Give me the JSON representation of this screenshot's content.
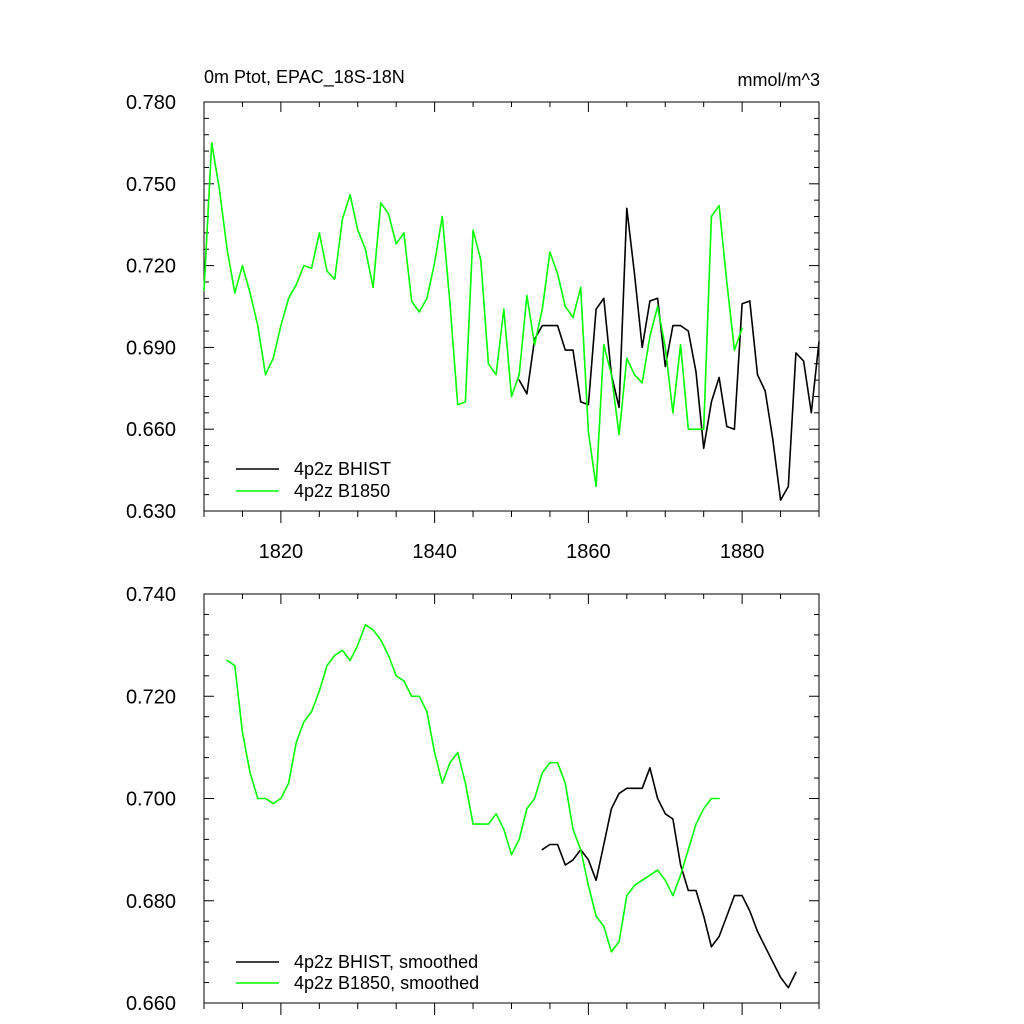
{
  "chart_data": [
    {
      "type": "line",
      "title": "0m Ptot, EPAC_18S-18N",
      "units": "mmol/m^3",
      "xlim": [
        1810,
        1890
      ],
      "ylim": [
        0.63,
        0.78
      ],
      "x_ticks": [
        1820,
        1840,
        1860,
        1880
      ],
      "x_tick_labels": [
        "1820",
        "1840",
        "1860",
        "1880"
      ],
      "y_ticks": [
        0.63,
        0.66,
        0.69,
        0.72,
        0.75,
        0.78
      ],
      "y_tick_labels": [
        "0.630",
        "0.660",
        "0.690",
        "0.720",
        "0.750",
        "0.780"
      ],
      "grid": false,
      "legend_position": "bottom-left",
      "series": [
        {
          "name": "4p2z BHIST",
          "color": "#000000",
          "x": [
            1851,
            1852,
            1853,
            1854,
            1855,
            1856,
            1857,
            1858,
            1859,
            1860,
            1861,
            1862,
            1863,
            1864,
            1865,
            1866,
            1867,
            1868,
            1869,
            1870,
            1871,
            1872,
            1873,
            1874,
            1875,
            1876,
            1877,
            1878,
            1879,
            1880,
            1881,
            1882,
            1883,
            1884,
            1885,
            1886,
            1887,
            1888,
            1889,
            1890
          ],
          "y": [
            0.678,
            0.673,
            0.693,
            0.698,
            0.698,
            0.698,
            0.689,
            0.689,
            0.67,
            0.669,
            0.704,
            0.708,
            0.68,
            0.668,
            0.741,
            0.717,
            0.69,
            0.707,
            0.708,
            0.683,
            0.698,
            0.698,
            0.696,
            0.681,
            0.653,
            0.67,
            0.679,
            0.661,
            0.66,
            0.706,
            0.707,
            0.68,
            0.674,
            0.656,
            0.634,
            0.639,
            0.688,
            0.685,
            0.666,
            0.692
          ]
        },
        {
          "name": "4p2z B1850",
          "color": "#00ff00",
          "x": [
            1810,
            1811,
            1812,
            1813,
            1814,
            1815,
            1816,
            1817,
            1818,
            1819,
            1820,
            1821,
            1822,
            1823,
            1824,
            1825,
            1826,
            1827,
            1828,
            1829,
            1830,
            1831,
            1832,
            1833,
            1834,
            1835,
            1836,
            1837,
            1838,
            1839,
            1840,
            1841,
            1842,
            1843,
            1844,
            1845,
            1846,
            1847,
            1848,
            1849,
            1850,
            1851,
            1852,
            1853,
            1854,
            1855,
            1856,
            1857,
            1858,
            1859,
            1860,
            1861,
            1862,
            1863,
            1864,
            1865,
            1866,
            1867,
            1868,
            1869,
            1870,
            1871,
            1872,
            1873,
            1874,
            1875,
            1876,
            1877,
            1878,
            1879,
            1880
          ],
          "y": [
            0.711,
            0.765,
            0.748,
            0.726,
            0.71,
            0.72,
            0.71,
            0.698,
            0.68,
            0.686,
            0.698,
            0.708,
            0.713,
            0.72,
            0.719,
            0.732,
            0.718,
            0.715,
            0.737,
            0.746,
            0.733,
            0.726,
            0.712,
            0.743,
            0.739,
            0.728,
            0.732,
            0.707,
            0.703,
            0.708,
            0.721,
            0.738,
            0.706,
            0.669,
            0.67,
            0.733,
            0.722,
            0.684,
            0.68,
            0.704,
            0.672,
            0.68,
            0.709,
            0.691,
            0.704,
            0.725,
            0.717,
            0.705,
            0.701,
            0.712,
            0.659,
            0.639,
            0.691,
            0.68,
            0.658,
            0.686,
            0.68,
            0.677,
            0.694,
            0.705,
            0.69,
            0.666,
            0.691,
            0.66,
            0.66,
            0.66,
            0.738,
            0.742,
            0.714,
            0.689,
            0.697
          ]
        }
      ]
    },
    {
      "type": "line",
      "xlim": [
        1810,
        1890
      ],
      "ylim": [
        0.66,
        0.74
      ],
      "x_ticks": [
        1820,
        1840,
        1860,
        1880
      ],
      "y_ticks": [
        0.66,
        0.68,
        0.7,
        0.72,
        0.74
      ],
      "y_tick_labels": [
        "0.660",
        "0.680",
        "0.700",
        "0.720",
        "0.740"
      ],
      "grid": false,
      "legend_position": "bottom-left",
      "series": [
        {
          "name": "4p2z BHIST, smoothed",
          "color": "#000000",
          "x": [
            1854,
            1855,
            1856,
            1857,
            1858,
            1859,
            1860,
            1861,
            1862,
            1863,
            1864,
            1865,
            1866,
            1867,
            1868,
            1869,
            1870,
            1871,
            1872,
            1873,
            1874,
            1875,
            1876,
            1877,
            1878,
            1879,
            1880,
            1881,
            1882,
            1883,
            1884,
            1885,
            1886,
            1887
          ],
          "y": [
            0.69,
            0.691,
            0.691,
            0.687,
            0.688,
            0.69,
            0.688,
            0.684,
            0.691,
            0.698,
            0.701,
            0.702,
            0.702,
            0.702,
            0.706,
            0.7,
            0.697,
            0.696,
            0.687,
            0.682,
            0.682,
            0.677,
            0.671,
            0.673,
            0.677,
            0.681,
            0.681,
            0.678,
            0.674,
            0.671,
            0.668,
            0.665,
            0.663,
            0.666
          ]
        },
        {
          "name": "4p2z B1850, smoothed",
          "color": "#00ff00",
          "x": [
            1813,
            1814,
            1815,
            1816,
            1817,
            1818,
            1819,
            1820,
            1821,
            1822,
            1823,
            1824,
            1825,
            1826,
            1827,
            1828,
            1829,
            1830,
            1831,
            1832,
            1833,
            1834,
            1835,
            1836,
            1837,
            1838,
            1839,
            1840,
            1841,
            1842,
            1843,
            1844,
            1845,
            1846,
            1847,
            1848,
            1849,
            1850,
            1851,
            1852,
            1853,
            1854,
            1855,
            1856,
            1857,
            1858,
            1859,
            1860,
            1861,
            1862,
            1863,
            1864,
            1865,
            1866,
            1867,
            1868,
            1869,
            1870,
            1871,
            1872,
            1873,
            1874,
            1875,
            1876,
            1877
          ],
          "y": [
            0.727,
            0.726,
            0.713,
            0.705,
            0.7,
            0.7,
            0.699,
            0.7,
            0.703,
            0.711,
            0.715,
            0.717,
            0.721,
            0.726,
            0.728,
            0.729,
            0.727,
            0.73,
            0.734,
            0.733,
            0.731,
            0.728,
            0.724,
            0.723,
            0.72,
            0.72,
            0.717,
            0.709,
            0.703,
            0.707,
            0.709,
            0.703,
            0.695,
            0.695,
            0.695,
            0.697,
            0.694,
            0.689,
            0.692,
            0.698,
            0.7,
            0.705,
            0.707,
            0.707,
            0.703,
            0.694,
            0.69,
            0.683,
            0.677,
            0.675,
            0.67,
            0.672,
            0.681,
            0.683,
            0.684,
            0.685,
            0.686,
            0.684,
            0.681,
            0.685,
            0.69,
            0.695,
            0.698,
            0.7,
            0.7
          ]
        }
      ]
    }
  ]
}
